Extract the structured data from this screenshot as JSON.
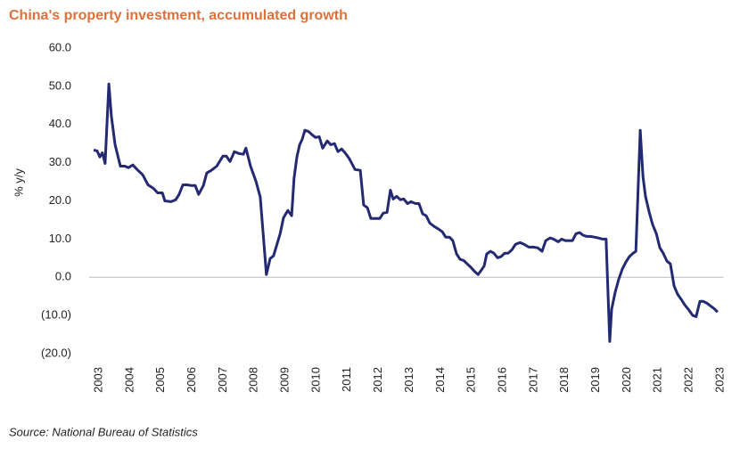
{
  "chart_data": {
    "type": "line",
    "title": "China's property investment, accumulated growth",
    "ylabel": "% y/y",
    "source": "Source: National Bureau of Statistics",
    "x": [
      2002.83,
      2002.94,
      2003.03,
      2003.11,
      2003.2,
      2003.32,
      2003.4,
      2003.52,
      2003.69,
      2003.83,
      2003.95,
      2004.09,
      2004.23,
      2004.41,
      2004.58,
      2004.75,
      2004.89,
      2005.04,
      2005.12,
      2005.32,
      2005.47,
      2005.58,
      2005.7,
      2005.84,
      2005.98,
      2006.1,
      2006.21,
      2006.36,
      2006.47,
      2006.62,
      2006.79,
      2006.99,
      2007.1,
      2007.22,
      2007.36,
      2007.5,
      2007.65,
      2007.73,
      2007.88,
      2008.05,
      2008.19,
      2008.28,
      2008.39,
      2008.51,
      2008.62,
      2008.74,
      2008.83,
      2008.94,
      2009.08,
      2009.2,
      2009.28,
      2009.37,
      2009.46,
      2009.54,
      2009.63,
      2009.74,
      2009.86,
      2009.97,
      2010.09,
      2010.2,
      2010.35,
      2010.46,
      2010.58,
      2010.69,
      2010.81,
      2010.92,
      2011.06,
      2011.24,
      2011.41,
      2011.52,
      2011.64,
      2011.75,
      2011.87,
      2012.04,
      2012.15,
      2012.27,
      2012.38,
      2012.47,
      2012.58,
      2012.7,
      2012.81,
      2012.93,
      2013.04,
      2013.19,
      2013.3,
      2013.42,
      2013.53,
      2013.65,
      2013.79,
      2013.93,
      2014.05,
      2014.16,
      2014.28,
      2014.39,
      2014.51,
      2014.62,
      2014.74,
      2014.85,
      2014.97,
      2015.08,
      2015.2,
      2015.31,
      2015.4,
      2015.48,
      2015.6,
      2015.71,
      2015.83,
      2015.94,
      2016.06,
      2016.17,
      2016.29,
      2016.4,
      2016.55,
      2016.69,
      2016.83,
      2016.98,
      2017.12,
      2017.26,
      2017.38,
      2017.52,
      2017.63,
      2017.78,
      2017.89,
      2018.01,
      2018.12,
      2018.24,
      2018.35,
      2018.47,
      2018.58,
      2018.7,
      2018.81,
      2018.95,
      2019.07,
      2019.21,
      2019.32,
      2019.44,
      2019.5,
      2019.61,
      2019.73,
      2019.84,
      2019.96,
      2020.07,
      2020.19,
      2020.28,
      2020.42,
      2020.51,
      2020.59,
      2020.71,
      2020.82,
      2020.94,
      2021.05,
      2021.16,
      2021.28,
      2021.39,
      2021.51,
      2021.62,
      2021.74,
      2021.85,
      2021.97,
      2022.11,
      2022.22,
      2022.34,
      2022.45,
      2022.57,
      2022.68,
      2022.8,
      2022.91
    ],
    "series": [
      {
        "color": "#232a72",
        "values": [
          33.3,
          33.1,
          31.5,
          32.6,
          29.8,
          50.6,
          42.2,
          34.7,
          29.1,
          29.1,
          28.7,
          29.4,
          28.2,
          26.8,
          24.2,
          23.3,
          22.1,
          22.1,
          20.0,
          19.8,
          20.3,
          21.7,
          24.2,
          24.2,
          24.0,
          24.0,
          21.7,
          24.0,
          27.3,
          28.0,
          29.1,
          31.7,
          31.7,
          30.3,
          32.9,
          32.4,
          32.2,
          33.8,
          29.1,
          25.2,
          21.0,
          11.9,
          0.7,
          4.9,
          5.6,
          8.9,
          11.4,
          15.6,
          17.5,
          16.1,
          25.9,
          31.5,
          34.7,
          36.1,
          38.5,
          38.2,
          37.3,
          36.6,
          36.8,
          33.8,
          35.7,
          34.7,
          35.0,
          32.9,
          33.6,
          32.6,
          31.0,
          28.2,
          28.0,
          18.9,
          18.2,
          15.4,
          15.4,
          15.4,
          16.8,
          17.0,
          22.8,
          20.5,
          21.2,
          20.3,
          20.5,
          19.3,
          19.8,
          19.3,
          19.3,
          16.6,
          16.1,
          14.2,
          13.3,
          12.6,
          11.9,
          10.5,
          10.5,
          9.6,
          6.1,
          4.7,
          4.4,
          3.5,
          2.6,
          1.6,
          0.7,
          1.9,
          3.0,
          6.1,
          6.8,
          6.3,
          5.1,
          5.4,
          6.3,
          6.3,
          7.2,
          8.6,
          9.1,
          8.6,
          7.9,
          7.9,
          7.7,
          6.8,
          9.6,
          10.3,
          10.0,
          9.3,
          10.0,
          9.6,
          9.6,
          9.6,
          11.4,
          11.7,
          11.0,
          10.7,
          10.7,
          10.5,
          10.3,
          10.0,
          10.0,
          -16.8,
          -8.4,
          -4.0,
          -0.5,
          2.1,
          4.0,
          5.4,
          6.3,
          6.8,
          38.5,
          26.3,
          21.2,
          17.0,
          13.8,
          11.4,
          7.7,
          6.3,
          4.2,
          3.5,
          -2.3,
          -4.4,
          -5.8,
          -7.2,
          -8.4,
          -10.0,
          -10.3,
          -6.3,
          -6.3,
          -6.8,
          -7.5,
          -8.2,
          -9.1
        ]
      }
    ],
    "xlim": [
      2002.8,
      2023.1
    ],
    "xticks": [
      2003,
      2004,
      2005,
      2006,
      2007,
      2008,
      2009,
      2010,
      2011,
      2012,
      2013,
      2014,
      2015,
      2016,
      2017,
      2018,
      2019,
      2020,
      2021,
      2022,
      2023
    ],
    "ylim": [
      -20,
      60
    ],
    "yticks": [
      {
        "value": -20,
        "label": "(20.0)"
      },
      {
        "value": -10,
        "label": "(10.0)"
      },
      {
        "value": 0,
        "label": "0.0"
      },
      {
        "value": 10,
        "label": "10.0"
      },
      {
        "value": 20,
        "label": "20.0"
      },
      {
        "value": 30,
        "label": "30.0"
      },
      {
        "value": 40,
        "label": "40.0"
      },
      {
        "value": 50,
        "label": "50.0"
      },
      {
        "value": 60,
        "label": "60.0"
      }
    ]
  }
}
